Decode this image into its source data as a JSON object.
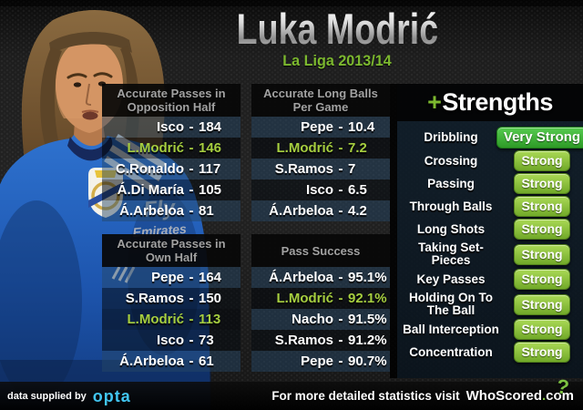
{
  "header": {
    "title": "Luka Modrić",
    "subtitle": "La Liga 2013/14"
  },
  "separator": "-",
  "tables": [
    {
      "title": "Accurate Passes in Opposition Half",
      "rows": [
        {
          "name": "Isco",
          "value": "184"
        },
        {
          "name": "L.Modrić",
          "value": "146",
          "highlight": true
        },
        {
          "name": "C.Ronaldo",
          "value": "117"
        },
        {
          "name": "Á.Di María",
          "value": "105"
        },
        {
          "name": "Á.Arbeloa",
          "value": "81"
        }
      ]
    },
    {
      "title": "Accurate Long Balls Per Game",
      "rows": [
        {
          "name": "Pepe",
          "value": "10.4"
        },
        {
          "name": "L.Modrić",
          "value": "7.2",
          "highlight": true
        },
        {
          "name": "S.Ramos",
          "value": "7"
        },
        {
          "name": "Isco",
          "value": "6.5"
        },
        {
          "name": "Á.Arbeloa",
          "value": "4.2"
        }
      ]
    },
    {
      "title": "Accurate Passes in Own Half",
      "rows": [
        {
          "name": "Pepe",
          "value": "164"
        },
        {
          "name": "S.Ramos",
          "value": "150"
        },
        {
          "name": "L.Modrić",
          "value": "113",
          "highlight": true
        },
        {
          "name": "Isco",
          "value": "73"
        },
        {
          "name": "Á.Arbeloa",
          "value": "61"
        }
      ]
    },
    {
      "title": "Pass Success",
      "rows": [
        {
          "name": "Á.Arbeloa",
          "value": "95.1%"
        },
        {
          "name": "L.Modrić",
          "value": "92.1%",
          "highlight": true
        },
        {
          "name": "Nacho",
          "value": "91.5%"
        },
        {
          "name": "S.Ramos",
          "value": "91.2%"
        },
        {
          "name": "Pepe",
          "value": "90.7%"
        }
      ]
    }
  ],
  "strengths": {
    "plus": "+",
    "title": "Strengths",
    "items": [
      {
        "label": "Dribbling",
        "rating": "Very Strong"
      },
      {
        "label": "Crossing",
        "rating": "Strong"
      },
      {
        "label": "Passing",
        "rating": "Strong"
      },
      {
        "label": "Through Balls",
        "rating": "Strong"
      },
      {
        "label": "Long Shots",
        "rating": "Strong"
      },
      {
        "label": "Taking Set-Pieces",
        "rating": "Strong"
      },
      {
        "label": "Key Passes",
        "rating": "Strong"
      },
      {
        "label": "Holding On To The Ball",
        "rating": "Strong"
      },
      {
        "label": "Ball Interception",
        "rating": "Strong"
      },
      {
        "label": "Concentration",
        "rating": "Strong"
      }
    ]
  },
  "footer": {
    "left_text": "data supplied by",
    "opta_brand": "opta",
    "right_text": "For more detailed statistics visit",
    "brand": "WhoScored",
    "brand_dot": ".",
    "brand_tld": "com",
    "question_glyph": "?"
  },
  "colors": {
    "accent_green": "#7cb82f",
    "highlight_text": "#a6ce3f",
    "badge_strong": "#8dc63f",
    "badge_very_strong": "#3fae37",
    "opta_blue": "#41c5f1",
    "row_navy": "#264866",
    "row_dark": "#050b11"
  },
  "chart_data": [
    {
      "type": "table",
      "title": "Accurate Passes in Opposition Half",
      "categories": [
        "Isco",
        "L.Modrić",
        "C.Ronaldo",
        "Á.Di María",
        "Á.Arbeloa"
      ],
      "values": [
        184,
        146,
        117,
        105,
        81
      ],
      "highlight": "L.Modrić"
    },
    {
      "type": "table",
      "title": "Accurate Long Balls Per Game",
      "categories": [
        "Pepe",
        "L.Modrić",
        "S.Ramos",
        "Isco",
        "Á.Arbeloa"
      ],
      "values": [
        10.4,
        7.2,
        7,
        6.5,
        4.2
      ],
      "highlight": "L.Modrić"
    },
    {
      "type": "table",
      "title": "Accurate Passes in Own Half",
      "categories": [
        "Pepe",
        "S.Ramos",
        "L.Modrić",
        "Isco",
        "Á.Arbeloa"
      ],
      "values": [
        164,
        150,
        113,
        73,
        61
      ],
      "highlight": "L.Modrić"
    },
    {
      "type": "table",
      "title": "Pass Success",
      "categories": [
        "Á.Arbeloa",
        "L.Modrić",
        "Nacho",
        "S.Ramos",
        "Pepe"
      ],
      "values": [
        "95.1%",
        "92.1%",
        "91.5%",
        "91.2%",
        "90.7%"
      ],
      "highlight": "L.Modrić"
    },
    {
      "type": "table",
      "title": "Strengths",
      "categories": [
        "Dribbling",
        "Crossing",
        "Passing",
        "Through Balls",
        "Long Shots",
        "Taking Set-Pieces",
        "Key Passes",
        "Holding On To The Ball",
        "Ball Interception",
        "Concentration"
      ],
      "values": [
        "Very Strong",
        "Strong",
        "Strong",
        "Strong",
        "Strong",
        "Strong",
        "Strong",
        "Strong",
        "Strong",
        "Strong"
      ]
    }
  ]
}
